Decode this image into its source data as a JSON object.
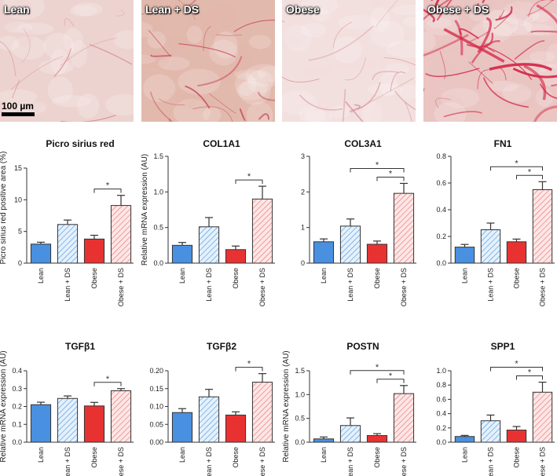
{
  "micrographs": [
    {
      "label": "Lean",
      "bg": "#ecd3d0",
      "fiber": "#d98a92",
      "density": 0.5
    },
    {
      "label": "Lean + DS",
      "bg": "#e2b9ad",
      "fiber": "#c84a5e",
      "density": 1.0
    },
    {
      "label": "Obese",
      "bg": "#f2e0de",
      "fiber": "#d8909a",
      "density": 0.8
    },
    {
      "label": "Obese + DS",
      "bg": "#eac5c2",
      "fiber": "#d42a4a",
      "density": 2.0
    }
  ],
  "scale_bar": "100 µm",
  "colors": {
    "Lean": "#4a90e0",
    "Lean + DS": "#3b8ed8",
    "Obese": "#e83232",
    "Obese + DS": "#e86d6d",
    "hatch_bg_lean_ds": "#e4f1fb",
    "hatch_bg_obese_ds": "#fde6e6"
  },
  "chart_data": [
    {
      "type": "bar",
      "title": "Picro sirius red",
      "ylabel": "Picro sirius red positive area (%)",
      "categories": [
        "Lean",
        "Lean + DS",
        "Obese",
        "Obese + DS"
      ],
      "values": [
        3.0,
        6.1,
        3.8,
        9.1
      ],
      "errors": [
        0.3,
        0.7,
        0.6,
        1.6
      ],
      "ylim": [
        0,
        15
      ],
      "yticks": [
        "0",
        "5",
        "10",
        "15"
      ],
      "sig": [
        {
          "from": "Obese",
          "to": "Obese + DS",
          "label": "*"
        }
      ]
    },
    {
      "type": "bar",
      "title": "COL1A1",
      "ylabel": "Relative mRNA expression (AU)",
      "categories": [
        "Lean",
        "Lean + DS",
        "Obese",
        "Obese + DS"
      ],
      "values": [
        0.25,
        0.51,
        0.19,
        0.9
      ],
      "errors": [
        0.04,
        0.13,
        0.05,
        0.18
      ],
      "ylim": [
        0,
        1.5
      ],
      "yticks": [
        "0.0",
        "0.5",
        "1.0",
        "1.5"
      ],
      "sig": [
        {
          "from": "Obese",
          "to": "Obese + DS",
          "label": "*"
        }
      ]
    },
    {
      "type": "bar",
      "title": "COL3A1",
      "ylabel": "",
      "categories": [
        "Lean",
        "Lean + DS",
        "Obese",
        "Obese + DS"
      ],
      "values": [
        0.6,
        1.04,
        0.53,
        1.96
      ],
      "errors": [
        0.08,
        0.2,
        0.09,
        0.28
      ],
      "ylim": [
        0,
        3
      ],
      "yticks": [
        "0",
        "1",
        "2",
        "3"
      ],
      "sig": [
        {
          "from": "Obese",
          "to": "Obese + DS",
          "label": "*"
        },
        {
          "from": "Lean + DS",
          "to": "Obese + DS",
          "label": "*"
        }
      ]
    },
    {
      "type": "bar",
      "title": "FN1",
      "ylabel": "",
      "categories": [
        "Lean",
        "Lean + DS",
        "Obese",
        "Obese + DS"
      ],
      "values": [
        0.12,
        0.25,
        0.16,
        0.55
      ],
      "errors": [
        0.02,
        0.05,
        0.02,
        0.06
      ],
      "ylim": [
        0,
        0.8
      ],
      "yticks": [
        "0.0",
        "0.2",
        "0.4",
        "0.6",
        "0.8"
      ],
      "sig": [
        {
          "from": "Obese",
          "to": "Obese + DS",
          "label": "*"
        },
        {
          "from": "Lean + DS",
          "to": "Obese + DS",
          "label": "*"
        }
      ]
    },
    {
      "type": "bar",
      "title": "TGFβ1",
      "ylabel": "Relative mRNA expression (AU)",
      "categories": [
        "Lean",
        "Lean + DS",
        "Obese",
        "Obese + DS"
      ],
      "values": [
        0.21,
        0.245,
        0.203,
        0.288
      ],
      "errors": [
        0.014,
        0.014,
        0.02,
        0.012
      ],
      "ylim": [
        0,
        0.4
      ],
      "yticks": [
        "0.0",
        "0.1",
        "0.2",
        "0.3",
        "0.4"
      ],
      "sig": [
        {
          "from": "Obese",
          "to": "Obese + DS",
          "label": "*"
        }
      ]
    },
    {
      "type": "bar",
      "title": "TGFβ2",
      "ylabel": "",
      "categories": [
        "Lean",
        "Lean + DS",
        "Obese",
        "Obese + DS"
      ],
      "values": [
        0.083,
        0.127,
        0.076,
        0.168
      ],
      "errors": [
        0.011,
        0.021,
        0.009,
        0.024
      ],
      "ylim": [
        0,
        0.2
      ],
      "yticks": [
        "0.00",
        "0.05",
        "0.10",
        "0.15",
        "0.20"
      ],
      "sig": [
        {
          "from": "Obese",
          "to": "Obese + DS",
          "label": "*"
        }
      ]
    },
    {
      "type": "bar",
      "title": "POSTN",
      "ylabel": "Relative mRNA expression (AU)",
      "categories": [
        "Lean",
        "Lean + DS",
        "Obese",
        "Obese + DS"
      ],
      "values": [
        0.07,
        0.35,
        0.14,
        1.02
      ],
      "errors": [
        0.04,
        0.16,
        0.04,
        0.17
      ],
      "ylim": [
        0,
        1.5
      ],
      "yticks": [
        "0.0",
        "0.5",
        "1.0",
        "1.5"
      ],
      "sig": [
        {
          "from": "Obese",
          "to": "Obese + DS",
          "label": "*"
        },
        {
          "from": "Lean + DS",
          "to": "Obese + DS",
          "label": "*"
        }
      ]
    },
    {
      "type": "bar",
      "title": "SPP1",
      "ylabel": "",
      "categories": [
        "Lean",
        "Lean + DS",
        "Obese",
        "Obese + DS"
      ],
      "values": [
        0.08,
        0.3,
        0.17,
        0.7
      ],
      "errors": [
        0.015,
        0.08,
        0.05,
        0.14
      ],
      "ylim": [
        0,
        1.0
      ],
      "yticks": [
        "0.0",
        "0.2",
        "0.4",
        "0.6",
        "0.8",
        "1.0"
      ],
      "sig": [
        {
          "from": "Obese",
          "to": "Obese + DS",
          "label": "*"
        },
        {
          "from": "Lean + DS",
          "to": "Obese + DS",
          "label": "*"
        }
      ]
    }
  ]
}
